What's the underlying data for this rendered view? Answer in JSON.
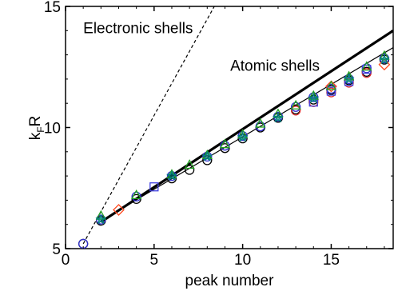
{
  "chart_data": {
    "type": "scatter",
    "title": "",
    "xlabel": "peak number",
    "ylabel": "k",
    "ylabel_sub": "F",
    "ylabel_tail": "R",
    "xlim": [
      0,
      18.5
    ],
    "ylim": [
      5,
      15
    ],
    "xticks": [
      0,
      5,
      10,
      15
    ],
    "yticks": [
      5,
      10,
      15
    ],
    "grid": false,
    "annotations": [
      {
        "text": "Electronic shells",
        "x": 1.0,
        "y": 13.9
      },
      {
        "text": "Atomic shells",
        "x": 9.3,
        "y": 12.35
      }
    ],
    "lines": [
      {
        "id": "electronic-shells-line",
        "style": "dashed",
        "x": [
          1,
          8.4
        ],
        "y": [
          5.2,
          15
        ]
      },
      {
        "id": "atomic-shells-line",
        "style": "thick",
        "x": [
          2,
          18.5
        ],
        "y": [
          6.1,
          14.0
        ]
      },
      {
        "id": "fit-line",
        "style": "thin",
        "x": [
          2,
          18.5
        ],
        "y": [
          6.15,
          13.3
        ]
      }
    ],
    "series": [
      {
        "marker": "circle-black",
        "color": "#000000",
        "x": [
          1,
          2,
          4,
          6,
          7,
          8,
          9,
          10,
          11,
          12,
          13,
          14,
          15,
          16,
          17,
          18
        ],
        "y": [
          5.2,
          6.15,
          7.05,
          7.9,
          8.25,
          8.65,
          9.15,
          9.55,
          10.0,
          10.4,
          10.75,
          11.15,
          11.55,
          11.95,
          12.3,
          12.8
        ]
      },
      {
        "marker": "circle-red",
        "color": "#e03030",
        "x": [
          13,
          14,
          15,
          16,
          17
        ],
        "y": [
          10.7,
          11.05,
          11.45,
          11.85,
          12.25
        ]
      },
      {
        "marker": "circle-blue",
        "color": "#3030d0",
        "x": [
          1,
          2,
          4,
          6,
          8,
          9,
          10,
          11,
          12,
          13,
          14,
          15,
          16,
          17,
          18
        ],
        "y": [
          5.2,
          6.2,
          7.15,
          8.0,
          8.8,
          9.25,
          9.65,
          10.05,
          10.45,
          10.85,
          11.25,
          11.6,
          12.0,
          12.45,
          12.85
        ]
      },
      {
        "marker": "square-blue",
        "color": "#4040e0",
        "x": [
          5,
          14,
          15,
          16,
          17
        ],
        "y": [
          7.55,
          11.05,
          11.5,
          11.9,
          12.4
        ]
      },
      {
        "marker": "diamond-red",
        "color": "#ff4a20",
        "x": [
          3,
          15,
          18
        ],
        "y": [
          6.6,
          11.7,
          12.6
        ]
      },
      {
        "marker": "triangle-green",
        "color": "#20a020",
        "x": [
          2,
          4,
          6,
          7,
          8,
          9,
          10,
          11,
          12,
          13,
          14,
          15,
          16,
          17,
          18
        ],
        "y": [
          6.35,
          7.2,
          8.05,
          8.45,
          8.85,
          9.3,
          9.7,
          10.15,
          10.55,
          10.9,
          11.3,
          11.7,
          12.1,
          12.5,
          12.95
        ]
      },
      {
        "marker": "star-teal",
        "color": "#008080",
        "x": [
          2,
          6,
          8,
          10,
          12,
          14,
          16,
          18
        ],
        "y": [
          6.2,
          8.0,
          8.8,
          9.6,
          10.4,
          11.2,
          12.0,
          12.8
        ]
      }
    ]
  }
}
